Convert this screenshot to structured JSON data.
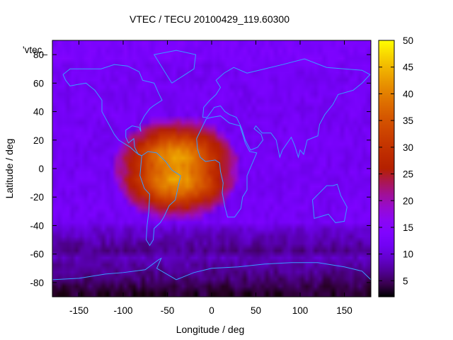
{
  "chart_data": {
    "type": "heatmap",
    "title": "VTEC / TECU 20100429_119.60300",
    "xlabel": "Longitude / deg",
    "ylabel": "Latitude / deg",
    "key_label": "'vtec_",
    "xlim": [
      -180,
      180
    ],
    "ylim": [
      -90,
      90
    ],
    "x_ticks": [
      -150,
      -100,
      -50,
      0,
      50,
      100,
      150
    ],
    "y_ticks": [
      -80,
      -60,
      -40,
      -20,
      0,
      20,
      40,
      60,
      80
    ],
    "cbar_range": [
      2,
      50
    ],
    "cbar_ticks": [
      5,
      10,
      15,
      20,
      25,
      30,
      35,
      40,
      45,
      50
    ],
    "colormap": "gnuplot-pm3d-default",
    "grid": false,
    "features": {
      "background_tec": 12,
      "equatorial_anomaly": {
        "center_lon": -40,
        "center_lat": 0,
        "peak_tec": 45,
        "lon_extent": 120,
        "lat_extent": 60
      },
      "polar_low": {
        "lat_below": -60,
        "min_tec": 3
      }
    },
    "overlay": "coastlines",
    "colors": {
      "coastline": "#3a9cff",
      "axis": "#000000"
    }
  }
}
